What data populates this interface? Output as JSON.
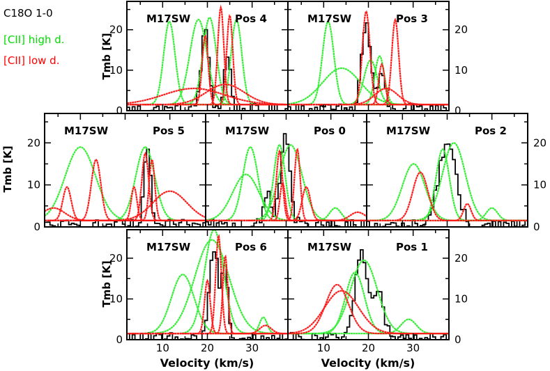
{
  "legend": {
    "title": "C18O 1-0",
    "items": [
      {
        "label": "[CII] high d.",
        "color": "#00dd00"
      },
      {
        "label": "[CII] low d.",
        "color": "#ff0000"
      }
    ]
  },
  "colors": {
    "observed": "#000000",
    "high_density": "#33ee33",
    "low_density": "#ff1a1a"
  },
  "chart_data": {
    "type": "line",
    "grid": false,
    "xlabel": "Velocity (km/s)",
    "ylabel": "Tmb [K]",
    "xlim": [
      2,
      38
    ],
    "ylim": [
      0,
      27
    ],
    "x_ticks": [
      10,
      20,
      30
    ],
    "y_ticks": [
      0,
      10,
      20
    ],
    "panels": [
      {
        "source": "M17SW",
        "position": "Pos 4",
        "observed_peaks": [
          {
            "v": 19.5,
            "tmb": 19,
            "fwhm": 2.2
          },
          {
            "v": 24.5,
            "tmb": 13,
            "fwhm": 1.8
          }
        ],
        "high_density_components": [
          {
            "v": 11.5,
            "tmb": 20.5,
            "fwhm": 3.0
          },
          {
            "v": 18,
            "tmb": 21,
            "fwhm": 4.5
          },
          {
            "v": 20.5,
            "tmb": 21.5,
            "fwhm": 3.5
          },
          {
            "v": 26.5,
            "tmb": 21,
            "fwhm": 2.8
          }
        ],
        "low_density_components": [
          {
            "v": 19.5,
            "tmb": 17,
            "fwhm": 1.6
          },
          {
            "v": 23,
            "tmb": 24,
            "fwhm": 1.6
          },
          {
            "v": 25,
            "tmb": 22,
            "fwhm": 1.6
          },
          {
            "v": 17,
            "tmb": 4,
            "fwhm": 16
          },
          {
            "v": 24,
            "tmb": 5,
            "fwhm": 10
          }
        ]
      },
      {
        "source": "M17SW",
        "position": "Pos 3",
        "observed_peaks": [
          {
            "v": 19.5,
            "tmb": 21,
            "fwhm": 2.5
          },
          {
            "v": 23,
            "tmb": 8,
            "fwhm": 2.0
          }
        ],
        "high_density_components": [
          {
            "v": 11,
            "tmb": 20.5,
            "fwhm": 3.0
          },
          {
            "v": 14,
            "tmb": 9,
            "fwhm": 10
          },
          {
            "v": 20.5,
            "tmb": 11,
            "fwhm": 3.5
          },
          {
            "v": 22.5,
            "tmb": 12,
            "fwhm": 2.5
          }
        ],
        "low_density_components": [
          {
            "v": 19.5,
            "tmb": 23,
            "fwhm": 2.0
          },
          {
            "v": 23,
            "tmb": 10,
            "fwhm": 1.6
          },
          {
            "v": 26,
            "tmb": 21,
            "fwhm": 1.8
          },
          {
            "v": 24,
            "tmb": 4,
            "fwhm": 6
          }
        ]
      },
      {
        "source": "M17SW",
        "position": "Pos 5",
        "observed_peaks": [
          {
            "v": 25,
            "tmb": 17,
            "fwhm": 1.8
          }
        ],
        "high_density_components": [
          {
            "v": 10,
            "tmb": 17.5,
            "fwhm": 8
          },
          {
            "v": 24.5,
            "tmb": 17.5,
            "fwhm": 5
          }
        ],
        "low_density_components": [
          {
            "v": 7,
            "tmb": 8,
            "fwhm": 2.2
          },
          {
            "v": 13.5,
            "tmb": 14.5,
            "fwhm": 2.5
          },
          {
            "v": 22,
            "tmb": 8,
            "fwhm": 1.5
          },
          {
            "v": 24.5,
            "tmb": 16,
            "fwhm": 1.8
          },
          {
            "v": 26,
            "tmb": 14.5,
            "fwhm": 1.5
          },
          {
            "v": 30,
            "tmb": 7,
            "fwhm": 9
          },
          {
            "v": 4,
            "tmb": 3,
            "fwhm": 6
          }
        ]
      },
      {
        "source": "M17SW",
        "position": "Pos 0",
        "observed_peaks": [
          {
            "v": 19.8,
            "tmb": 22,
            "fwhm": 2.5
          },
          {
            "v": 16,
            "tmb": 8,
            "fwhm": 2.0
          }
        ],
        "high_density_components": [
          {
            "v": 12,
            "tmb": 17.5,
            "fwhm": 4.0
          },
          {
            "v": 11,
            "tmb": 11,
            "fwhm": 7
          },
          {
            "v": 18.5,
            "tmb": 18,
            "fwhm": 3.0
          },
          {
            "v": 21,
            "tmb": 18,
            "fwhm": 6
          },
          {
            "v": 31,
            "tmb": 3,
            "fwhm": 3
          }
        ],
        "low_density_components": [
          {
            "v": 18.5,
            "tmb": 16.5,
            "fwhm": 1.6
          },
          {
            "v": 19.2,
            "tmb": 9,
            "fwhm": 1.4
          },
          {
            "v": 22.5,
            "tmb": 17,
            "fwhm": 1.5
          },
          {
            "v": 24.5,
            "tmb": 8,
            "fwhm": 2.2
          },
          {
            "v": 36,
            "tmb": 2,
            "fwhm": 4
          }
        ]
      },
      {
        "source": "M17SW",
        "position": "Pos 2",
        "observed_peaks": [
          {
            "v": 20,
            "tmb": 20,
            "fwhm": 4.5
          }
        ],
        "high_density_components": [
          {
            "v": 12.5,
            "tmb": 13.5,
            "fwhm": 6
          },
          {
            "v": 19,
            "tmb": 17,
            "fwhm": 3.5
          },
          {
            "v": 21.5,
            "tmb": 18.5,
            "fwhm": 6
          },
          {
            "v": 30,
            "tmb": 3,
            "fwhm": 3
          }
        ],
        "low_density_components": [
          {
            "v": 14,
            "tmb": 11.5,
            "fwhm": 4
          },
          {
            "v": 24.5,
            "tmb": 4,
            "fwhm": 2
          }
        ]
      },
      {
        "source": "M17SW",
        "position": "Pos 6",
        "observed_peaks": [
          {
            "v": 21.5,
            "tmb": 22,
            "fwhm": 2.5
          },
          {
            "v": 24,
            "tmb": 18,
            "fwhm": 1.5
          }
        ],
        "high_density_components": [
          {
            "v": 14.5,
            "tmb": 14.5,
            "fwhm": 6
          },
          {
            "v": 21,
            "tmb": 23,
            "fwhm": 9
          },
          {
            "v": 21.5,
            "tmb": 25.5,
            "fwhm": 5
          },
          {
            "v": 32.5,
            "tmb": 4,
            "fwhm": 2
          }
        ],
        "low_density_components": [
          {
            "v": 20,
            "tmb": 13,
            "fwhm": 1.5
          },
          {
            "v": 22.5,
            "tmb": 24,
            "fwhm": 1.5
          },
          {
            "v": 24,
            "tmb": 19,
            "fwhm": 1.3
          },
          {
            "v": 33,
            "tmb": 2,
            "fwhm": 3
          }
        ]
      },
      {
        "source": "M17SW",
        "position": "Pos 1",
        "observed_peaks": [
          {
            "v": 18.5,
            "tmb": 21.5,
            "fwhm": 3.5
          },
          {
            "v": 22.5,
            "tmb": 11,
            "fwhm": 2.5
          }
        ],
        "high_density_components": [
          {
            "v": 17,
            "tmb": 15,
            "fwhm": 5
          },
          {
            "v": 19,
            "tmb": 18,
            "fwhm": 7
          },
          {
            "v": 29,
            "tmb": 3.5,
            "fwhm": 4
          }
        ],
        "low_density_components": [
          {
            "v": 13,
            "tmb": 12,
            "fwhm": 6
          },
          {
            "v": 14,
            "tmb": 10.5,
            "fwhm": 9
          }
        ]
      }
    ]
  }
}
